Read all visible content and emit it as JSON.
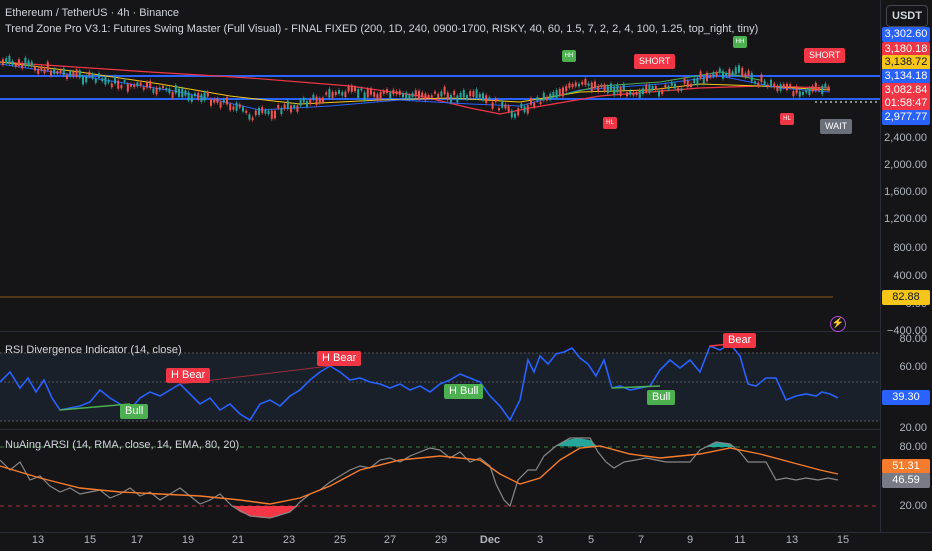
{
  "header": {
    "symbol_line": "Ethereum / TetherUS · 4h · Binance",
    "indicator_line": "Trend Zone Pro V3.1: Futures Swing Master (Full Visual) - FINAL FIXED (200, 1D, 240, 0900-1700, RISKY, 40, 60, 1.5, 7, 2, 2, 4, 100, 1.25, top_right, tiny)",
    "currency_button": "USDT"
  },
  "price_axis": {
    "ticks": [
      "2,400.00",
      "2,000.00",
      "1,600.00",
      "1,200.00",
      "800.00",
      "400.00",
      "0.00"
    ],
    "tags": [
      {
        "text": "3,302.60",
        "bg": "#2962ff",
        "fg": "#ffffff"
      },
      {
        "text": "3,180.18",
        "bg": "#f23645",
        "fg": "#ffffff"
      },
      {
        "text": "3,138.72",
        "bg": "#f5c518",
        "fg": "#131722"
      },
      {
        "text": "3,134.18",
        "bg": "#2962ff",
        "fg": "#ffffff"
      },
      {
        "text": "3,082.84",
        "bg": "#f23645",
        "fg": "#ffffff"
      },
      {
        "text": "01:58:47",
        "bg": "#f23645",
        "fg": "#ffffff"
      },
      {
        "text": "2,977.77",
        "bg": "#2962ff",
        "fg": "#ffffff"
      },
      {
        "text": "82.88",
        "bg": "#f5c518",
        "fg": "#131722"
      }
    ],
    "neg_tick": "−400.00"
  },
  "signals": {
    "short1": "SHORT",
    "short2": "SHORT",
    "wait": "WAIT",
    "hh1": "HH",
    "hh2": "HH",
    "hl1": "HL",
    "hl2": "HL"
  },
  "rsi_pane": {
    "title": "RSI Divergence Indicator (14, close)",
    "ticks": [
      "80.00",
      "60.00",
      "20.00"
    ],
    "value_tag": "39.30",
    "labels": {
      "bear1": "H Bear",
      "bear2": "H Bear",
      "bear3": "Bear",
      "bull1": "Bull",
      "bull2": "H Bull",
      "bull3": "Bull"
    },
    "colors": {
      "line": "#2962ff",
      "bear": "#f23645",
      "bull": "#4caf50"
    }
  },
  "arsi_pane": {
    "title": "NuAing ARSI (14, RMA, close, 14, EMA, 80, 20)",
    "ticks": [
      "80.00",
      "20.00"
    ],
    "tags": [
      {
        "text": "51.31",
        "bg": "#f57c2c",
        "fg": "#ffffff"
      },
      {
        "text": "46.59",
        "bg": "#787b86",
        "fg": "#ffffff"
      }
    ]
  },
  "time_axis": [
    "13",
    "15",
    "17",
    "19",
    "21",
    "23",
    "25",
    "27",
    "29",
    "Dec",
    "3",
    "5",
    "7",
    "9",
    "11",
    "13",
    "15"
  ]
}
